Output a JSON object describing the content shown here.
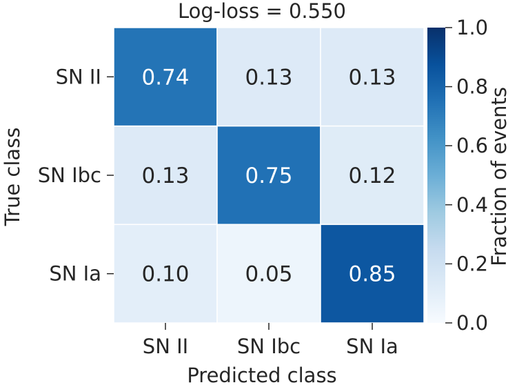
{
  "chart_data": {
    "type": "heatmap",
    "title": "Log-loss = 0.550",
    "xlabel": "Predicted class",
    "ylabel": "True class",
    "x_categories": [
      "SN II",
      "SN Ibc",
      "SN Ia"
    ],
    "y_categories": [
      "SN II",
      "SN Ibc",
      "SN Ia"
    ],
    "values": [
      [
        0.74,
        0.13,
        0.13
      ],
      [
        0.13,
        0.75,
        0.12
      ],
      [
        0.1,
        0.05,
        0.85
      ]
    ],
    "value_labels": [
      [
        "0.74",
        "0.13",
        "0.13"
      ],
      [
        "0.13",
        "0.75",
        "0.12"
      ],
      [
        "0.10",
        "0.05",
        "0.85"
      ]
    ],
    "colorbar": {
      "label": "Fraction of events",
      "range": [
        0.0,
        1.0
      ],
      "ticks": [
        0.0,
        0.2,
        0.4,
        0.6,
        0.8,
        1.0
      ],
      "tick_labels": [
        "0.0",
        "0.2",
        "0.4",
        "0.6",
        "0.8",
        "1.0"
      ],
      "colormap": "Blues",
      "color_low": "#f7fbff",
      "color_high": "#08306b"
    },
    "grid": false
  }
}
